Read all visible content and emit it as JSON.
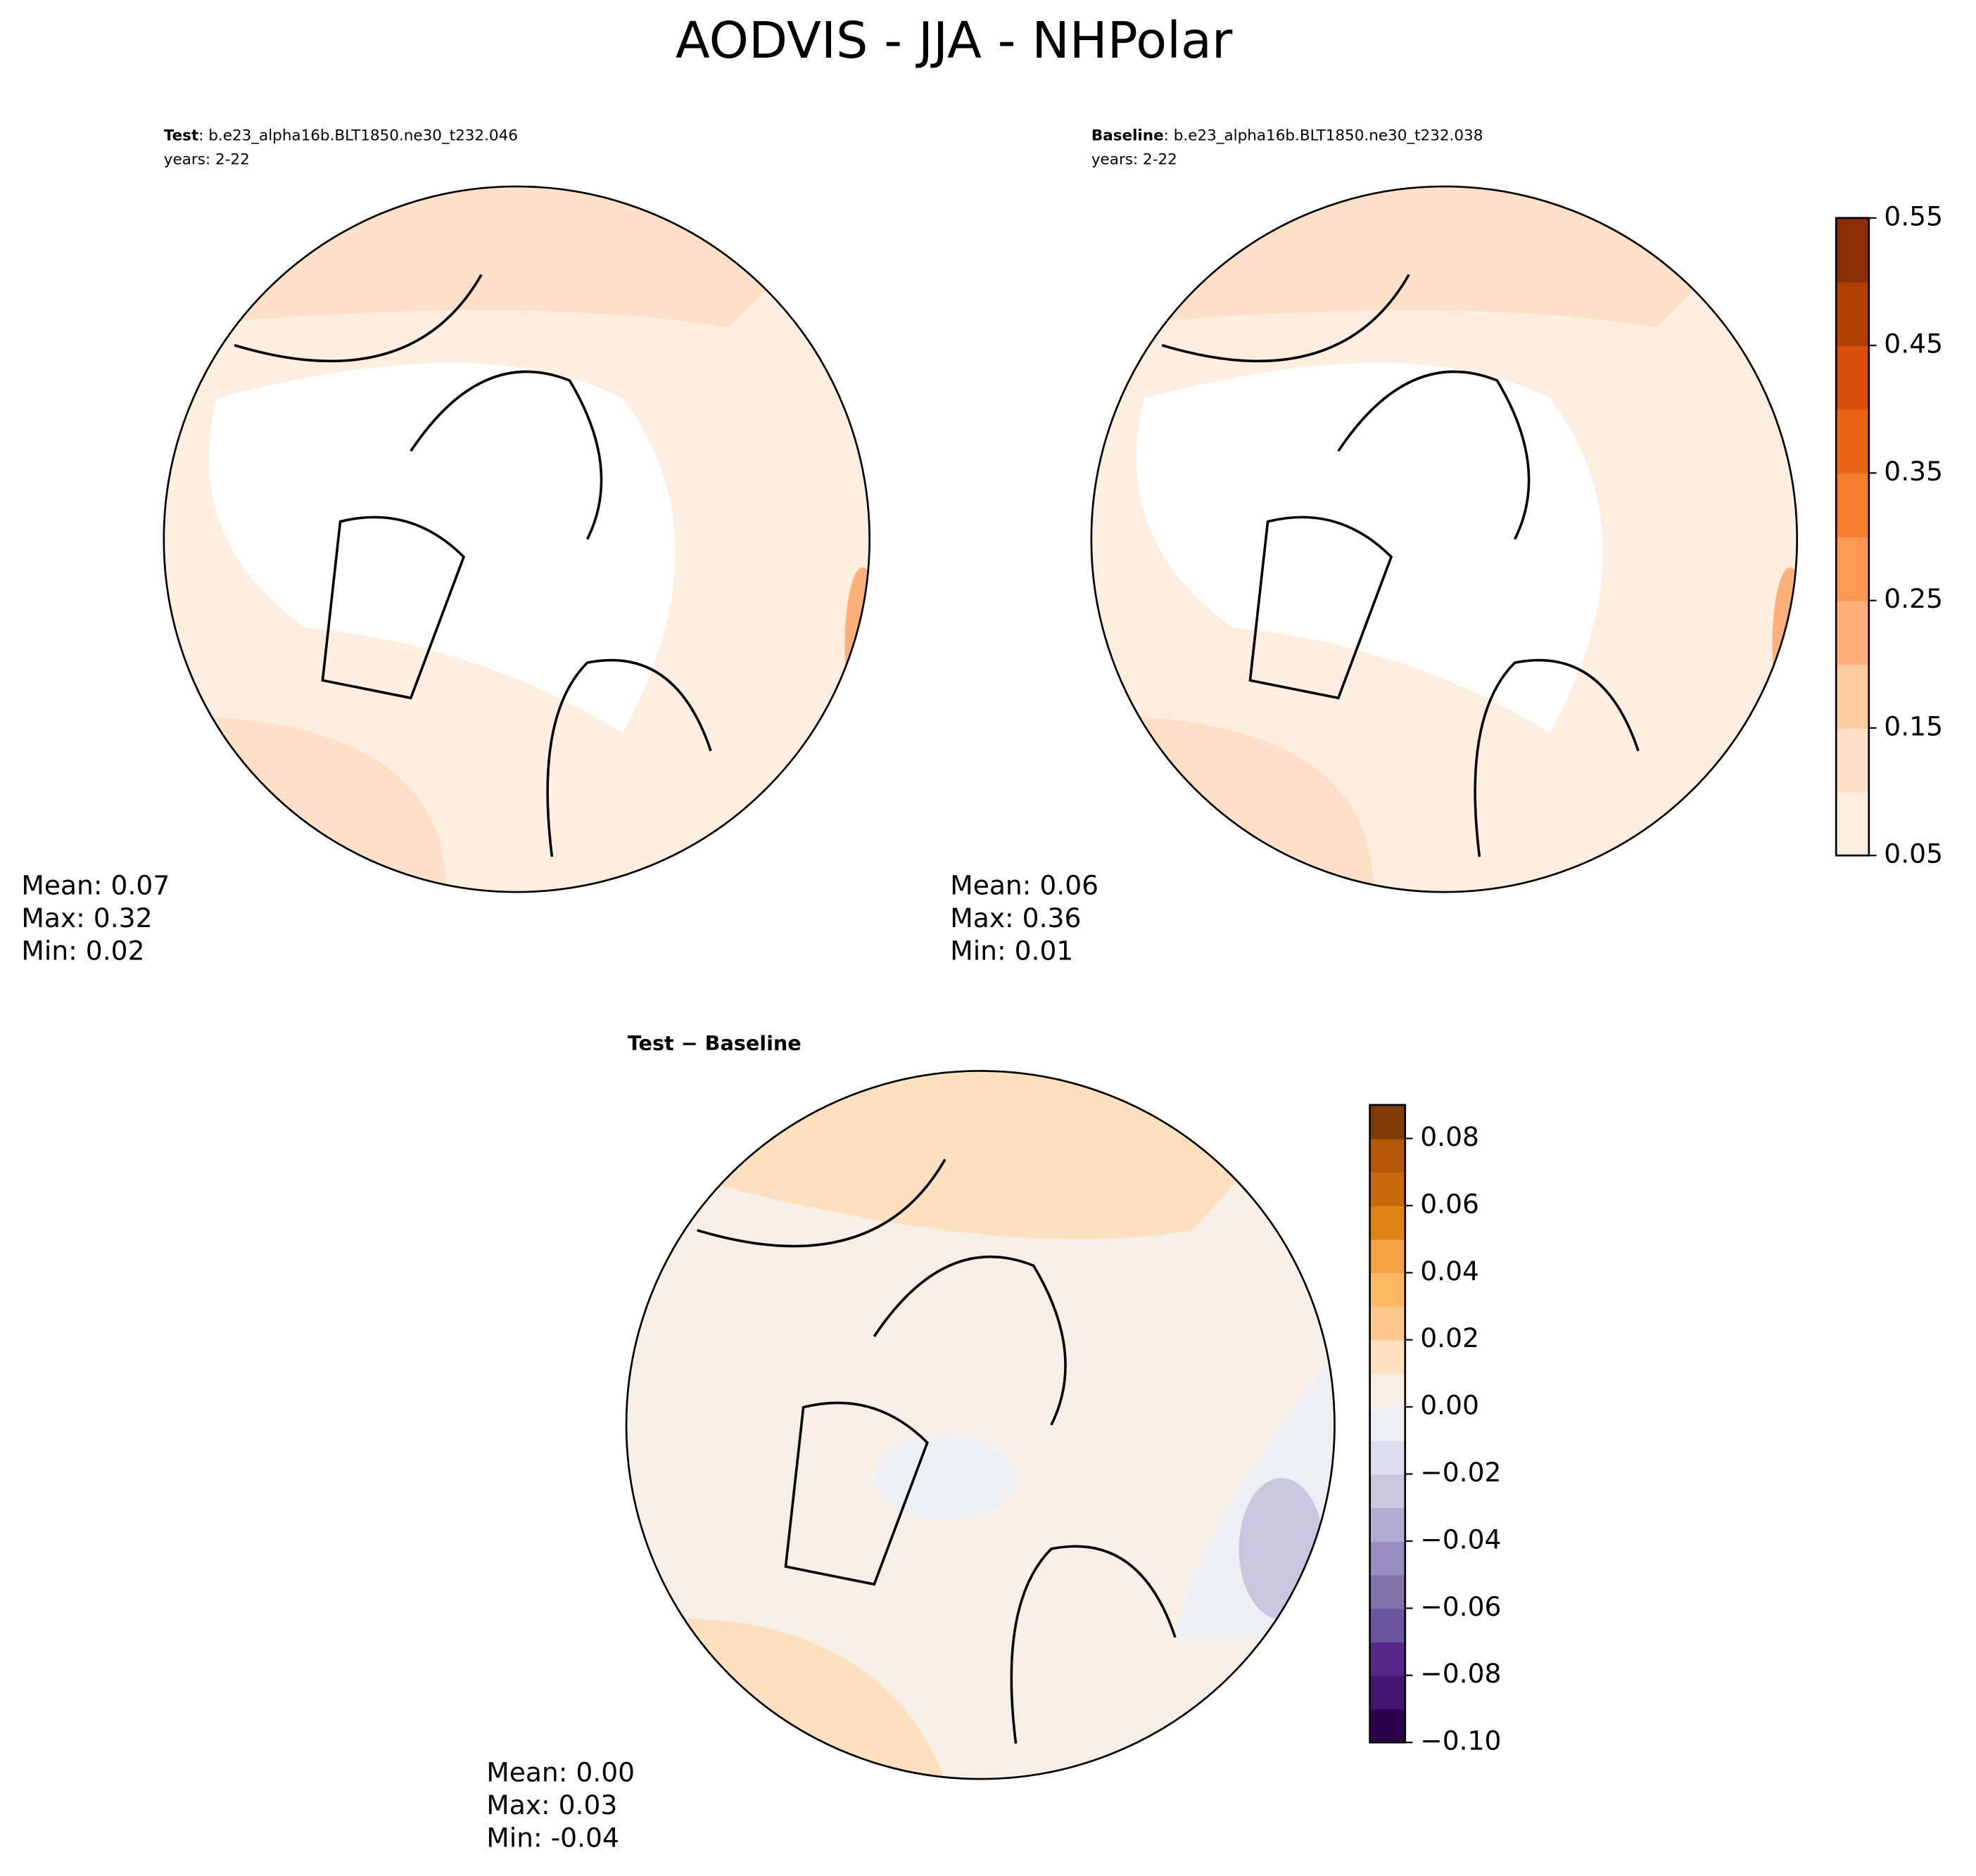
{
  "title": "AODVIS - JJA - NHPolar",
  "chart_data": [
    {
      "type": "map",
      "case_label": "Test",
      "case_name": ": b.e23_alpha16b.BLT1850.ne30_t232.046",
      "years": "years: 2-22",
      "stats": [
        "Mean:  0.07",
        "Max:  0.32",
        "Min:  0.02"
      ]
    },
    {
      "type": "map",
      "case_label": "Baseline",
      "case_name": ": b.e23_alpha16b.BLT1850.ne30_t232.038",
      "years": "years: 2-22",
      "stats": [
        "Mean:  0.06",
        "Max:  0.36",
        "Min:  0.01"
      ],
      "colorbar": {
        "ylim": [
          0.05,
          0.55
        ],
        "yticks": [
          0.05,
          0.15,
          0.25,
          0.35,
          0.45,
          0.55
        ],
        "colors": [
          "#fdeee0",
          "#fde0c5",
          "#fdcba0",
          "#fdb07a",
          "#fd9853",
          "#f87e30",
          "#ec6517",
          "#d94f08",
          "#b13f03",
          "#8a2f03"
        ]
      }
    },
    {
      "type": "map",
      "case_label": "Test − Baseline",
      "stats": [
        "Mean:  0.00",
        "Max:  0.03",
        "Min: -0.04"
      ],
      "colorbar": {
        "ylim": [
          -0.1,
          0.09
        ],
        "yticks": [
          {
            "value": -0.1,
            "label": "−0.10"
          },
          {
            "value": -0.08,
            "label": "−0.08"
          },
          {
            "value": -0.06,
            "label": "−0.06"
          },
          {
            "value": -0.04,
            "label": "−0.04"
          },
          {
            "value": -0.02,
            "label": "−0.02"
          },
          {
            "value": 0,
            "label": "0.00"
          },
          0.02,
          0.04,
          0.06,
          0.08
        ],
        "colors": [
          "#2d004b",
          "#401670",
          "#542788",
          "#6b56a0",
          "#8073ac",
          "#998ec3",
          "#b2abd2",
          "#cbc6e0",
          "#dcdcec",
          "#eeeff4",
          "#f7efe5",
          "#fde0c0",
          "#fdc890",
          "#fdb863",
          "#f2a042",
          "#e08214",
          "#c76a0c",
          "#b35806",
          "#7f3b08"
        ]
      }
    }
  ]
}
